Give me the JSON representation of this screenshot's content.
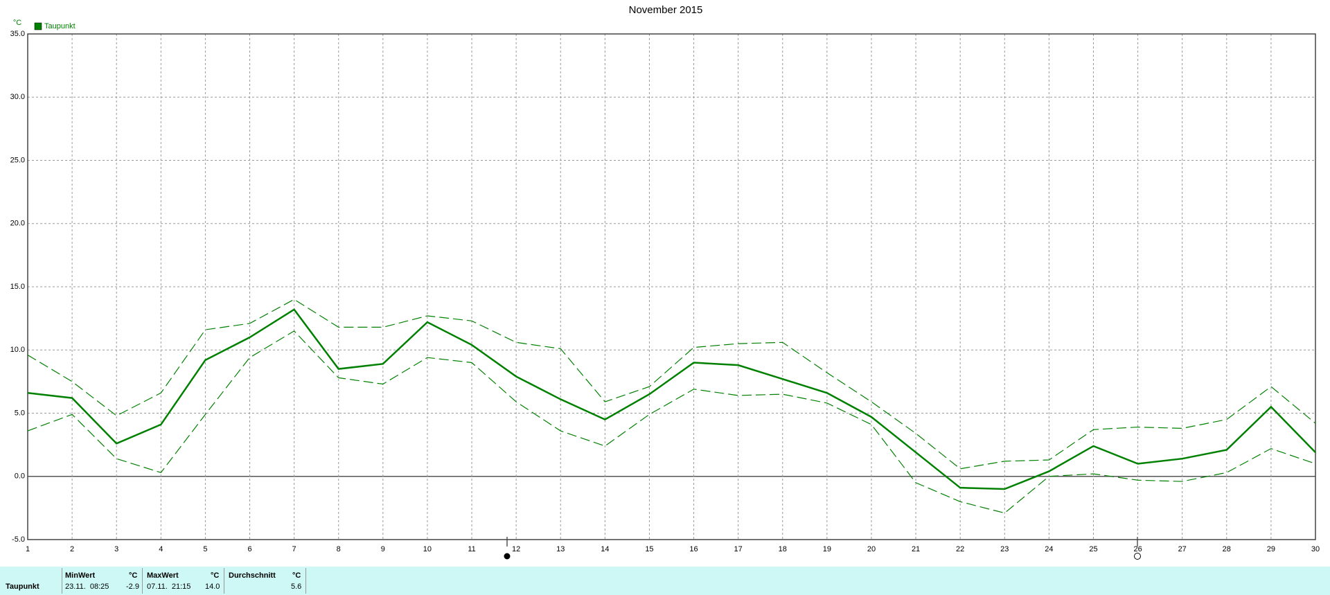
{
  "chart_data": {
    "type": "line",
    "title": "November 2015",
    "y_label": "°C",
    "x": [
      1,
      2,
      3,
      4,
      5,
      6,
      7,
      8,
      9,
      10,
      11,
      12,
      13,
      14,
      15,
      16,
      17,
      18,
      19,
      20,
      21,
      22,
      23,
      24,
      25,
      26,
      27,
      28,
      29,
      30
    ],
    "xlim": [
      1,
      30
    ],
    "xticks": [
      1,
      2,
      3,
      4,
      5,
      6,
      7,
      8,
      9,
      10,
      11,
      12,
      13,
      14,
      15,
      16,
      17,
      18,
      19,
      20,
      21,
      22,
      23,
      24,
      25,
      26,
      27,
      28,
      29,
      30
    ],
    "ylim": [
      -5,
      35
    ],
    "yticks": [
      {
        "value": -5,
        "label": "-5.0"
      },
      {
        "value": 0,
        "label": "0.0"
      },
      {
        "value": 5,
        "label": "5.0"
      },
      {
        "value": 10,
        "label": "10.0"
      },
      {
        "value": 15,
        "label": "15.0"
      },
      {
        "value": 20,
        "label": "20.0"
      },
      {
        "value": 25,
        "label": "25.0"
      },
      {
        "value": 30,
        "label": "30.0"
      },
      {
        "value": 35,
        "label": "35.0"
      }
    ],
    "grid": true,
    "legend": "top-left",
    "series": [
      {
        "name": "Taupunkt",
        "color": "#008000",
        "style": "solid",
        "values": [
          6.6,
          6.2,
          2.6,
          4.1,
          9.2,
          11.0,
          13.2,
          8.5,
          8.9,
          12.2,
          10.4,
          7.9,
          6.1,
          4.5,
          6.5,
          9.0,
          8.8,
          7.7,
          6.6,
          4.7,
          1.9,
          -0.9,
          -1.0,
          0.4,
          2.4,
          1.0,
          1.4,
          2.1,
          5.5,
          1.9
        ]
      },
      {
        "color": "#008000",
        "style": "dashed",
        "values": [
          9.6,
          7.5,
          4.8,
          6.6,
          11.6,
          12.1,
          14.0,
          11.8,
          11.8,
          12.7,
          12.3,
          10.6,
          10.1,
          5.9,
          7.1,
          10.2,
          10.5,
          10.6,
          8.2,
          5.9,
          3.4,
          0.6,
          1.2,
          1.3,
          3.7,
          3.9,
          3.8,
          4.5,
          7.1,
          4.2
        ]
      },
      {
        "color": "#008000",
        "style": "dashed",
        "values": [
          3.6,
          4.9,
          1.4,
          0.3,
          4.9,
          9.4,
          11.5,
          7.8,
          7.3,
          9.4,
          9.0,
          5.9,
          3.6,
          2.4,
          4.9,
          6.9,
          6.4,
          6.5,
          5.8,
          4.1,
          -0.5,
          -2.0,
          -2.9,
          0.0,
          0.2,
          -0.3,
          -0.4,
          0.3,
          2.2,
          1.0
        ]
      }
    ]
  },
  "stats_table": {
    "header": [
      "MinWert",
      "°C",
      "MaxWert",
      "°C",
      "Durchschnitt",
      "°C"
    ],
    "row": [
      "Taupunkt",
      "23.11.  08:25",
      "-2.9",
      "07.11.  21:15",
      "14.0",
      "5.6"
    ]
  }
}
